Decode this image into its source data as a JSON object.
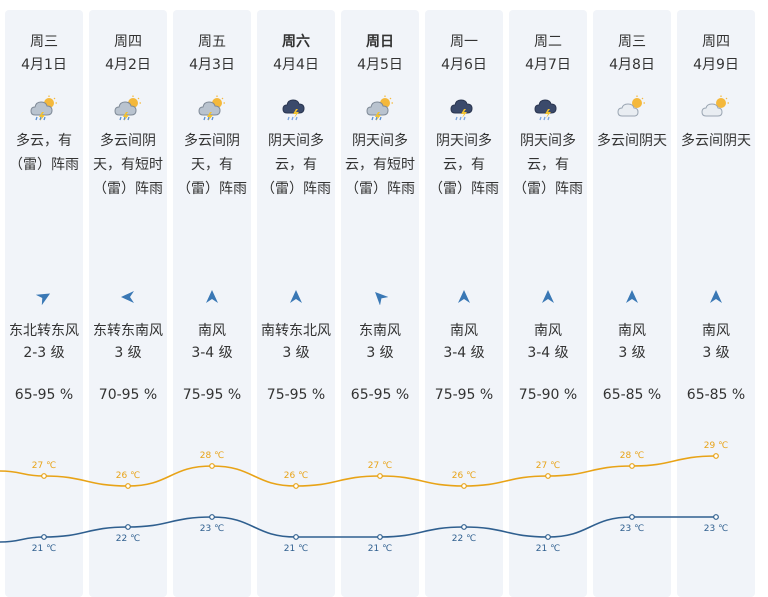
{
  "forecast": {
    "days": [
      {
        "weekday": "周三",
        "date": "4月1日",
        "icon": "cloud-sun-rain-icon",
        "desc": [
          "多云，有",
          "（雷）阵雨"
        ],
        "wind_dir": "东北转东风",
        "wind_level": "2-3 级",
        "humidity": "65-95 %",
        "high": "27 ℃",
        "low": "21 ℃",
        "bold": false,
        "arrow_deg": 60
      },
      {
        "weekday": "周四",
        "date": "4月2日",
        "icon": "cloud-sun-rain-icon",
        "desc": [
          "多云间阴",
          "天，有短时",
          "（雷）阵雨"
        ],
        "wind_dir": "东转东南风",
        "wind_level": "3 级",
        "humidity": "70-95 %",
        "high": "26 ℃",
        "low": "22 ℃",
        "bold": false,
        "arrow_deg": -90
      },
      {
        "weekday": "周五",
        "date": "4月3日",
        "icon": "cloud-sun-rain-icon",
        "desc": [
          "多云间阴",
          "天，有",
          "（雷）阵雨"
        ],
        "wind_dir": "南风",
        "wind_level": "3-4 级",
        "humidity": "75-95 %",
        "high": "28 ℃",
        "low": "23 ℃",
        "bold": false,
        "arrow_deg": 0
      },
      {
        "weekday": "周六",
        "date": "4月4日",
        "icon": "thunderstorm-icon",
        "desc": [
          "阴天间多",
          "云，有",
          "（雷）阵雨"
        ],
        "wind_dir": "南转东北风",
        "wind_level": "3 级",
        "humidity": "75-95 %",
        "high": "26 ℃",
        "low": "21 ℃",
        "bold": true,
        "arrow_deg": 0
      },
      {
        "weekday": "周日",
        "date": "4月5日",
        "icon": "cloud-sun-rain-icon",
        "desc": [
          "阴天间多",
          "云，有短时",
          "（雷）阵雨"
        ],
        "wind_dir": "东南风",
        "wind_level": "3 级",
        "humidity": "65-95 %",
        "high": "27 ℃",
        "low": "21 ℃",
        "bold": true,
        "arrow_deg": -45
      },
      {
        "weekday": "周一",
        "date": "4月6日",
        "icon": "thunderstorm-icon",
        "desc": [
          "阴天间多",
          "云，有",
          "（雷）阵雨"
        ],
        "wind_dir": "南风",
        "wind_level": "3-4 级",
        "humidity": "75-95 %",
        "high": "26 ℃",
        "low": "22 ℃",
        "bold": false,
        "arrow_deg": 0
      },
      {
        "weekday": "周二",
        "date": "4月7日",
        "icon": "thunderstorm-icon",
        "desc": [
          "阴天间多",
          "云，有",
          "（雷）阵雨"
        ],
        "wind_dir": "南风",
        "wind_level": "3-4 级",
        "humidity": "75-90 %",
        "high": "27 ℃",
        "low": "21 ℃",
        "bold": false,
        "arrow_deg": 0
      },
      {
        "weekday": "周三",
        "date": "4月8日",
        "icon": "partly-cloudy-icon",
        "desc": [
          "多云间阴天"
        ],
        "wind_dir": "南风",
        "wind_level": "3 级",
        "humidity": "65-85 %",
        "high": "28 ℃",
        "low": "23 ℃",
        "bold": false,
        "arrow_deg": 0
      },
      {
        "weekday": "周四",
        "date": "4月9日",
        "icon": "partly-cloudy-icon",
        "desc": [
          "多云间阴天"
        ],
        "wind_dir": "南风",
        "wind_level": "3 级",
        "humidity": "65-85 %",
        "high": "29 ℃",
        "low": "23 ℃",
        "bold": false,
        "arrow_deg": 0
      }
    ]
  },
  "colors": {
    "high_line": "#e8a317",
    "low_line": "#2f5f8f",
    "column_bg": "#f1f4f9",
    "arrow": "#3a78b5",
    "text": "#333333"
  }
}
